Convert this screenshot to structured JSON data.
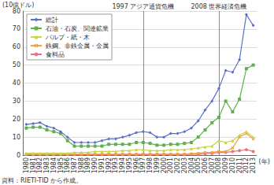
{
  "chart_data": {
    "type": "line",
    "y_label": "(10億ドル)",
    "x_label": "(年)",
    "source": "資料：RIETI-TID から作成。",
    "annotations": [
      {
        "x": "1997",
        "label": "1997 アジア通貨危機"
      },
      {
        "x": "2008",
        "label": "2008 世界経済危機"
      }
    ],
    "categories": [
      "1980",
      "1981",
      "1982",
      "1983",
      "1984",
      "1985",
      "1986",
      "1987",
      "1988",
      "1989",
      "1990",
      "1991",
      "1992",
      "1993",
      "1994",
      "1995",
      "1996",
      "1997",
      "1998",
      "1999",
      "2000",
      "2001",
      "2002",
      "2003",
      "2004",
      "2005",
      "2006",
      "2007",
      "2008",
      "2009",
      "2010",
      "2011",
      "2012",
      "2013"
    ],
    "series": [
      {
        "name": "総計",
        "color": "#5b6fc6",
        "marker": "diamond",
        "values": [
          17,
          17.5,
          18,
          16,
          15,
          13,
          10,
          7,
          7,
          7,
          7,
          8,
          9,
          9,
          10,
          11,
          12.5,
          13,
          12.5,
          10,
          10,
          12,
          12,
          13,
          15,
          19,
          25,
          30,
          37,
          47,
          46,
          53,
          78,
          72
        ]
      },
      {
        "name": "石油・石炭、関連鉱業",
        "color": "#5fb04f",
        "marker": "rect",
        "values": [
          15,
          15.5,
          15.5,
          14,
          13,
          12,
          8,
          5,
          5,
          5,
          5,
          5,
          6,
          6,
          6,
          6,
          7,
          7,
          6.5,
          5.5,
          5.5,
          6,
          6,
          6.5,
          7,
          10,
          14,
          18,
          21,
          30,
          24,
          31,
          48,
          50
        ]
      },
      {
        "name": "パルプ・紙・木",
        "color": "#c8d44a",
        "marker": "triangle",
        "values": [
          1,
          1,
          1,
          1,
          1,
          1,
          1,
          1.5,
          1.5,
          1.5,
          2,
          2,
          2,
          2,
          2.5,
          2.5,
          3,
          3,
          2.5,
          2.5,
          2.5,
          3,
          3,
          3,
          3.5,
          4,
          4.5,
          5,
          8,
          7,
          8,
          11,
          13,
          10
        ]
      },
      {
        "name": "鉄鋼、非鉄金属・金属",
        "color": "#f0a040",
        "marker": "cross",
        "values": [
          0.5,
          0.5,
          0.5,
          0.5,
          0.5,
          0.5,
          0.5,
          0.5,
          0.5,
          0.5,
          0.5,
          0.5,
          0.5,
          0.5,
          0.5,
          0.5,
          0.5,
          0.5,
          0.5,
          0.5,
          0.5,
          0.5,
          0.5,
          0.5,
          0.8,
          1,
          1.5,
          1.5,
          2,
          2,
          4,
          10,
          12,
          9
        ]
      },
      {
        "name": "食料品",
        "color": "#e8737a",
        "marker": "circle",
        "values": [
          0.3,
          0.3,
          0.3,
          0.3,
          0.3,
          0.3,
          0.3,
          0.3,
          0.3,
          0.3,
          0.3,
          0.3,
          0.3,
          0.3,
          0.3,
          0.3,
          0.3,
          0.3,
          0.3,
          0.3,
          0.3,
          0.3,
          0.3,
          0.3,
          0.5,
          0.5,
          0.8,
          1,
          1.5,
          1.5,
          2,
          2.5,
          3,
          2
        ]
      }
    ],
    "ylim": [
      0,
      80
    ],
    "yticks": [
      0,
      10,
      20,
      30,
      40,
      50,
      60,
      70,
      80
    ],
    "grid": true,
    "legend": "top-left"
  }
}
